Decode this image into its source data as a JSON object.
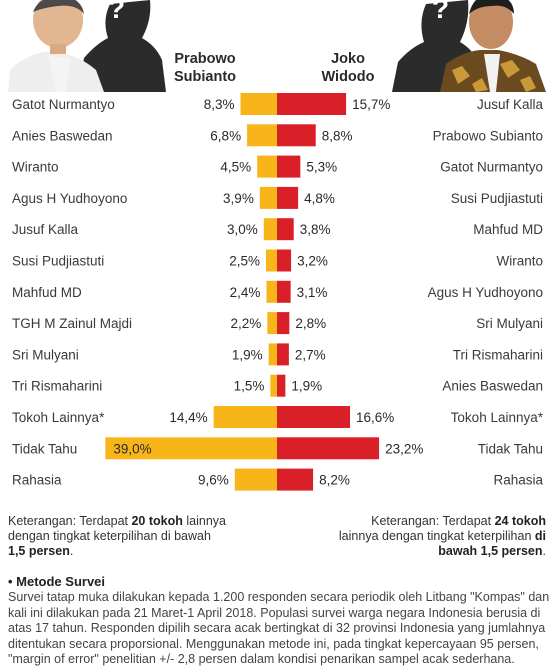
{
  "candidates": {
    "left": {
      "name_line1": "Prabowo",
      "name_line2": "Subianto"
    },
    "right": {
      "name_line1": "Joko",
      "name_line2": "Widodo"
    }
  },
  "colors": {
    "left_bar": "#f7b519",
    "right_bar": "#d92028",
    "text": "#2a2a2a"
  },
  "chart_data": {
    "type": "bar",
    "orientation": "horizontal-diverging",
    "series": [
      {
        "name": "Prabowo Subianto",
        "categories": [
          "Gatot Nurmantyo",
          "Anies Baswedan",
          "Wiranto",
          "Agus H Yudhoyono",
          "Jusuf Kalla",
          "Susi Pudjiastuti",
          "Mahfud MD",
          "TGH M Zainul Majdi",
          "Sri Mulyani",
          "Tri Rismaharini",
          "Tokoh Lainnya*",
          "Tidak Tahu",
          "Rahasia"
        ],
        "values": [
          8.3,
          6.8,
          4.5,
          3.9,
          3.0,
          2.5,
          2.4,
          2.2,
          1.9,
          1.5,
          14.4,
          39.0,
          9.6
        ],
        "labels": [
          "8,3%",
          "6,8%",
          "4,5%",
          "3,9%",
          "3,0%",
          "2,5%",
          "2,4%",
          "2,2%",
          "1,9%",
          "1,5%",
          "14,4%",
          "39,0%",
          "9,6%"
        ]
      },
      {
        "name": "Joko Widodo",
        "categories": [
          "Jusuf Kalla",
          "Prabowo Subianto",
          "Gatot Nurmantyo",
          "Susi Pudjiastuti",
          "Mahfud MD",
          "Wiranto",
          "Agus H Yudhoyono",
          "Sri Mulyani",
          "Tri Rismaharini",
          "Anies Baswedan",
          "Tokoh Lainnya*",
          "Tidak Tahu",
          "Rahasia"
        ],
        "values": [
          15.7,
          8.8,
          5.3,
          4.8,
          3.8,
          3.2,
          3.1,
          2.8,
          2.7,
          1.9,
          16.6,
          23.2,
          8.2
        ],
        "labels": [
          "15,7%",
          "8,8%",
          "5,3%",
          "4,8%",
          "3,8%",
          "3,2%",
          "3,1%",
          "2,8%",
          "2,7%",
          "1,9%",
          "16,6%",
          "23,2%",
          "8,2%"
        ]
      }
    ]
  },
  "notes": {
    "left": {
      "pre": "Keterangan: Terdapat ",
      "bold1": "20 tokoh",
      "mid": " lainnya dengan tingkat keterpilihan di bawah ",
      "bold2": "1,5 persen",
      "post": "."
    },
    "right": {
      "pre": "Keterangan: Terdapat ",
      "bold1": "24 tokoh",
      "mid": " lainnya dengan tingkat keterpilihan ",
      "bold2": "di bawah 1,5 persen",
      "post": "."
    }
  },
  "method": {
    "title": "• Metode Survei",
    "text": "Survei tatap muka dilakukan kepada 1.200 responden secara periodik oleh Litbang \"Kompas\" dan kali ini dilakukan pada 21 Maret-1 April 2018. Populasi survei warga negara Indonesia berusia di atas 17 tahun. Responden dipilih secara acak bertingkat di 32 provinsi Indonesia yang jumlahnya ditentukan secara proporsional. Menggunakan metode ini, pada tingkat kepercayaan 95 persen, \"margin of error\" penelitian +/- 2,8 persen dalam kondisi penarikan sampel acak sederhana."
  }
}
